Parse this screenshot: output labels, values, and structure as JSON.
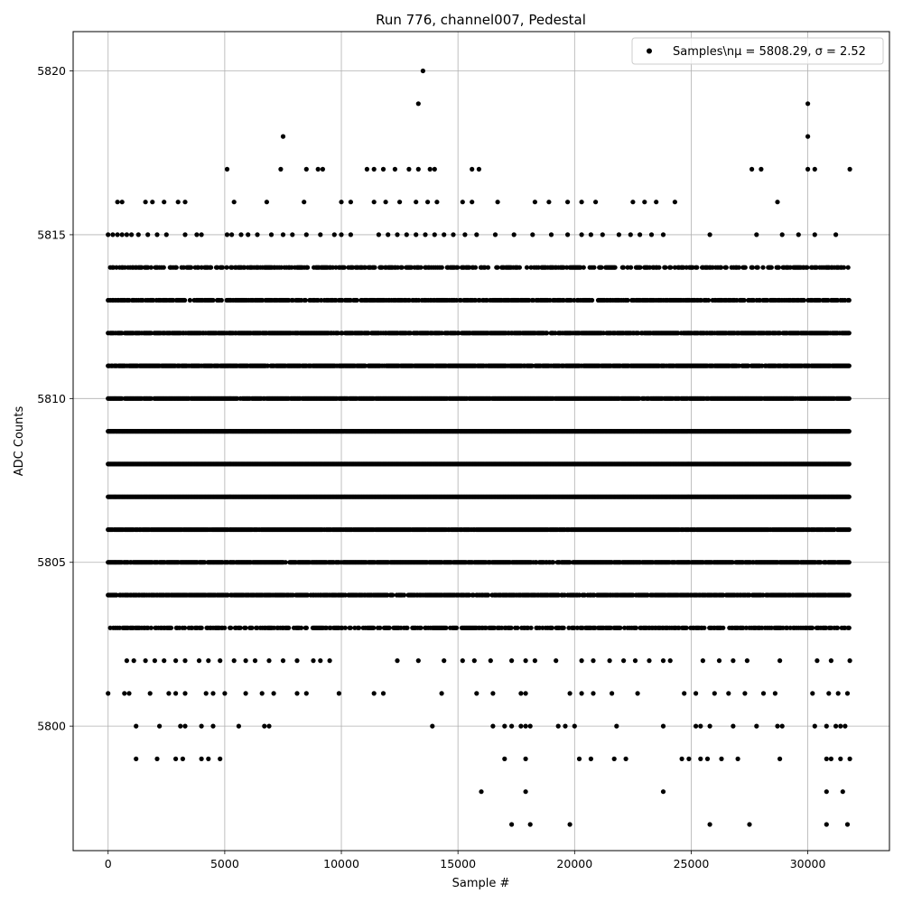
{
  "chart_data": {
    "type": "scatter",
    "title": "Run 776, channel007, Pedestal",
    "xlabel": "Sample #",
    "ylabel": "ADC Counts",
    "xlim": [
      -1500,
      33500
    ],
    "ylim": [
      5796.2,
      5821.2
    ],
    "xticks": [
      0,
      5000,
      10000,
      15000,
      20000,
      25000,
      30000
    ],
    "xtick_labels": [
      "0",
      "5000",
      "10000",
      "15000",
      "20000",
      "25000",
      "30000"
    ],
    "yticks": [
      5800,
      5805,
      5810,
      5815,
      5820
    ],
    "ytick_labels": [
      "5800",
      "5805",
      "5810",
      "5815",
      "5820"
    ],
    "grid": true,
    "legend_position": "top-right",
    "series": [
      {
        "name": "Samples\\n$\\mu$ = 5808.29, $\\sigma$ = 2.52",
        "legend_text": "Samples\\nμ = 5808.29, σ = 2.52",
        "color": "#000000",
        "marker": "circle",
        "x_range": [
          0,
          31800
        ],
        "mean": 5808.29,
        "sigma": 2.52,
        "bands": [
          {
            "y": 5797,
            "x": [
              17300,
              18100,
              19800,
              25800,
              27500,
              30800,
              31700
            ]
          },
          {
            "y": 5798,
            "x": [
              16000,
              17900,
              23800,
              30800,
              31500
            ]
          },
          {
            "y": 5799,
            "x": [
              1200,
              2100,
              2900,
              3200,
              4000,
              4300,
              4800,
              17000,
              17900,
              20200,
              20700,
              21700,
              22200,
              24600,
              24900,
              25400,
              25700,
              26300,
              27000,
              28800,
              30800,
              31000,
              31400,
              31800
            ]
          },
          {
            "y": 5800,
            "x": [
              1200,
              2200,
              3100,
              3300,
              4000,
              4500,
              5600,
              6700,
              6900,
              13900,
              16500,
              17000,
              17300,
              17700,
              17900,
              18100,
              19300,
              19600,
              20000,
              21800,
              23800,
              25200,
              25400,
              25800,
              26800,
              27800,
              28700,
              28900,
              30300,
              30800,
              31200,
              31400,
              31600
            ]
          },
          {
            "y": 5801,
            "x": [
              0,
              700,
              900,
              1800,
              2600,
              2900,
              3300,
              4200,
              4500,
              5000,
              5900,
              6600,
              7100,
              8100,
              8500,
              9900,
              11400,
              11800,
              14300,
              15800,
              16500,
              17700,
              17900,
              19800,
              20300,
              20800,
              21600,
              22700,
              24700,
              25200,
              26000,
              26600,
              27300,
              28100,
              28600,
              30200,
              30900,
              31300,
              31700
            ]
          },
          {
            "y": 5802,
            "x": [
              800,
              1100,
              1600,
              2000,
              2400,
              2900,
              3300,
              3900,
              4300,
              4800,
              5400,
              5900,
              6300,
              6900,
              7500,
              8100,
              8800,
              9100,
              9500,
              12400,
              13300,
              14400,
              15200,
              15700,
              16400,
              17300,
              17900,
              18300,
              19200,
              20300,
              20800,
              21500,
              22100,
              22600,
              23200,
              23800,
              24100,
              25500,
              26200,
              26800,
              27400,
              28800,
              30400,
              31000,
              31800
            ]
          },
          {
            "y": 5803,
            "x_min": 0,
            "x_max": 31800,
            "density": 0.6
          },
          {
            "y": 5804,
            "x_min": 0,
            "x_max": 31800,
            "density": 0.8
          },
          {
            "y": 5805,
            "x_min": 0,
            "x_max": 31800,
            "density": 0.9
          },
          {
            "y": 5806,
            "x_min": 0,
            "x_max": 31800,
            "density": 0.95
          },
          {
            "y": 5807,
            "x_min": 0,
            "x_max": 31800,
            "density": 1.0
          },
          {
            "y": 5808,
            "x_min": 0,
            "x_max": 31800,
            "density": 1.0
          },
          {
            "y": 5809,
            "x_min": 0,
            "x_max": 31800,
            "density": 1.0
          },
          {
            "y": 5810,
            "x_min": 0,
            "x_max": 31800,
            "density": 0.95
          },
          {
            "y": 5811,
            "x_min": 0,
            "x_max": 31800,
            "density": 0.9
          },
          {
            "y": 5812,
            "x_min": 0,
            "x_max": 31800,
            "density": 0.85
          },
          {
            "y": 5813,
            "x_min": 0,
            "x_max": 31800,
            "density": 0.7
          },
          {
            "y": 5814,
            "x_min": 0,
            "x_max": 31800,
            "density": 0.5
          },
          {
            "y": 5815,
            "x": [
              0,
              200,
              400,
              600,
              800,
              1000,
              1300,
              1700,
              2100,
              2500,
              3300,
              3800,
              4000,
              5100,
              5300,
              5700,
              6000,
              6400,
              7000,
              7500,
              7900,
              8500,
              9100,
              9700,
              10000,
              10400,
              11600,
              12000,
              12400,
              12800,
              13200,
              13600,
              14000,
              14400,
              14800,
              15300,
              15800,
              16600,
              17400,
              18200,
              19000,
              19700,
              20300,
              20700,
              21200,
              21900,
              22400,
              22800,
              23300,
              23800,
              25800,
              27800,
              28900,
              29600,
              30300,
              31200
            ]
          },
          {
            "y": 5816,
            "x": [
              400,
              600,
              1600,
              1900,
              2400,
              3000,
              3300,
              5400,
              6800,
              8400,
              10000,
              10400,
              11400,
              11900,
              12500,
              13200,
              13700,
              14100,
              15200,
              15600,
              16700,
              18300,
              18900,
              19700,
              20300,
              20900,
              22500,
              23000,
              23500,
              24300,
              28700
            ]
          },
          {
            "y": 5817,
            "x": [
              5100,
              7400,
              8500,
              9000,
              9200,
              11100,
              11400,
              11800,
              12300,
              12900,
              13300,
              13800,
              14000,
              15600,
              15900,
              27600,
              28000,
              30000,
              30300,
              31800
            ]
          },
          {
            "y": 5818,
            "x": [
              7500,
              30000
            ]
          },
          {
            "y": 5819,
            "x": [
              13300,
              30000
            ]
          },
          {
            "y": 5820,
            "x": [
              13500
            ]
          }
        ]
      }
    ]
  }
}
